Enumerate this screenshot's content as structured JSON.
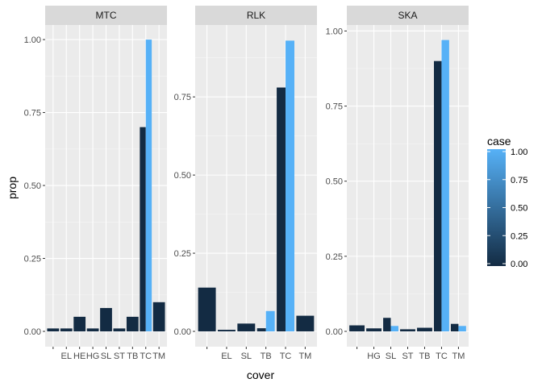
{
  "chart_data": {
    "type": "bar",
    "xlabel": "cover",
    "ylabel": "prop",
    "legend": {
      "title": "case",
      "position": "right",
      "labels": [
        "1.00",
        "0.75",
        "0.50",
        "0.25",
        "0.00"
      ],
      "low_color": "#132B43",
      "high_color": "#56B1F7"
    },
    "grid": true,
    "panels": [
      {
        "name": "MTC",
        "ylim": [
          0,
          1.05
        ],
        "yticks": [
          0,
          0.25,
          0.5,
          0.75,
          1.0
        ],
        "ytick_labels": [
          "0.00",
          "0.25",
          "0.50",
          "0.75",
          "1.00"
        ],
        "categories": [
          "",
          "EL",
          "HE",
          "HG",
          "SL",
          "ST",
          "TB",
          "TC",
          "TM"
        ],
        "xtick_labels": [
          "",
          "EL",
          "HE",
          "HG",
          "SL",
          "ST",
          "TB",
          "TC",
          "TM"
        ],
        "bars": [
          {
            "cat": 0,
            "case": 0,
            "value": 0.01
          },
          {
            "cat": 1,
            "case": 0,
            "value": 0.01
          },
          {
            "cat": 2,
            "case": 0,
            "value": 0.05
          },
          {
            "cat": 3,
            "case": 0,
            "value": 0.01
          },
          {
            "cat": 4,
            "case": 0,
            "value": 0.08
          },
          {
            "cat": 5,
            "case": 0,
            "value": 0.01
          },
          {
            "cat": 6,
            "case": 0,
            "value": 0.05
          },
          {
            "cat": 7,
            "case": 0,
            "value": 0.7
          },
          {
            "cat": 7,
            "case": 1,
            "value": 1.0
          },
          {
            "cat": 8,
            "case": 0,
            "value": 0.1
          }
        ]
      },
      {
        "name": "RLK",
        "ylim": [
          0,
          0.98
        ],
        "yticks": [
          0,
          0.25,
          0.5,
          0.75
        ],
        "ytick_labels": [
          "0.00",
          "0.25",
          "0.50",
          "0.75"
        ],
        "categories": [
          "",
          "EL",
          "SL",
          "TB",
          "TC",
          "TM"
        ],
        "xtick_labels": [
          "",
          "EL",
          "SL",
          "TB",
          "TC",
          "TM"
        ],
        "bars": [
          {
            "cat": 0,
            "case": 0,
            "value": 0.14
          },
          {
            "cat": 1,
            "case": 0,
            "value": 0.005
          },
          {
            "cat": 2,
            "case": 0,
            "value": 0.025
          },
          {
            "cat": 3,
            "case": 0,
            "value": 0.01
          },
          {
            "cat": 3,
            "case": 1,
            "value": 0.065
          },
          {
            "cat": 4,
            "case": 0,
            "value": 0.78
          },
          {
            "cat": 4,
            "case": 1,
            "value": 0.93
          },
          {
            "cat": 5,
            "case": 0,
            "value": 0.05
          }
        ]
      },
      {
        "name": "SKA",
        "ylim": [
          0,
          1.02
        ],
        "yticks": [
          0,
          0.25,
          0.5,
          0.75,
          1.0
        ],
        "ytick_labels": [
          "0.00",
          "0.25",
          "0.50",
          "0.75",
          "1.00"
        ],
        "categories": [
          "",
          "HG",
          "SL",
          "ST",
          "TB",
          "TC",
          "TM"
        ],
        "xtick_labels": [
          "",
          "HG",
          "SL",
          "ST",
          "TB",
          "TC",
          "TM"
        ],
        "bars": [
          {
            "cat": 0,
            "case": 0,
            "value": 0.02
          },
          {
            "cat": 1,
            "case": 0,
            "value": 0.01
          },
          {
            "cat": 2,
            "case": 0,
            "value": 0.045
          },
          {
            "cat": 2,
            "case": 1,
            "value": 0.018
          },
          {
            "cat": 3,
            "case": 0,
            "value": 0.007
          },
          {
            "cat": 4,
            "case": 0,
            "value": 0.012
          },
          {
            "cat": 5,
            "case": 0,
            "value": 0.9
          },
          {
            "cat": 5,
            "case": 1,
            "value": 0.97
          },
          {
            "cat": 6,
            "case": 0,
            "value": 0.025
          },
          {
            "cat": 6,
            "case": 1,
            "value": 0.018
          }
        ]
      }
    ]
  }
}
